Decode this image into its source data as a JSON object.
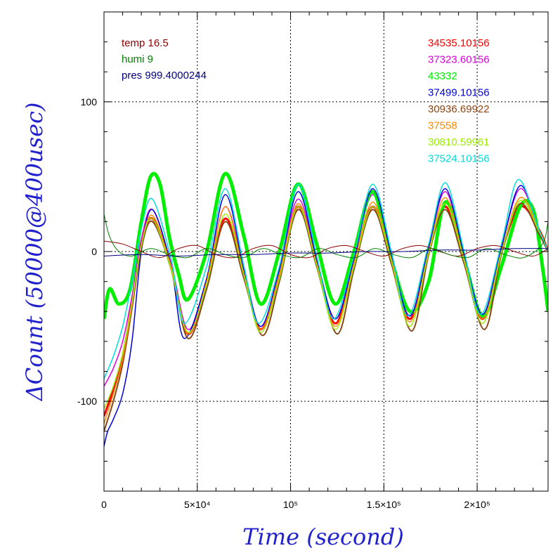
{
  "chart_data": {
    "type": "line",
    "title": "",
    "xlabel": "Time (second)",
    "ylabel": "ΔCount (50000@400usec)",
    "xlim": [
      0,
      238000
    ],
    "ylim": [
      -160,
      160
    ],
    "grid": true,
    "x_ticks": [
      {
        "value": 0,
        "label": "0"
      },
      {
        "value": 50000,
        "label": "5×10⁴"
      },
      {
        "value": 100000,
        "label": "10⁵"
      },
      {
        "value": 150000,
        "label": "1.5×10⁵"
      },
      {
        "value": 200000,
        "label": "2×10⁵"
      }
    ],
    "y_ticks": [
      {
        "value": -100,
        "label": "-100"
      },
      {
        "value": 0,
        "label": "0"
      },
      {
        "value": 100,
        "label": "100"
      }
    ],
    "env_legend": [
      {
        "label": "temp 16.5",
        "color": "#8b0000"
      },
      {
        "label": "humi 9",
        "color": "#008000"
      },
      {
        "label": "pres 999.4000244",
        "color": "#000080"
      }
    ],
    "series": [
      {
        "name": "34535.10156",
        "color": "#ff0000",
        "width": 3,
        "x": [
          0,
          5000,
          10000,
          15000,
          20000,
          26000,
          36000,
          45000,
          55000,
          65000,
          75000,
          84000,
          94000,
          104000,
          114000,
          124000,
          134000,
          144000,
          154000,
          164000,
          174000,
          183000,
          193000,
          203000,
          213000,
          223000,
          233000,
          238000
        ],
        "y": [
          -110,
          -92,
          -70,
          -35,
          5,
          22,
          -10,
          -55,
          -20,
          22,
          -15,
          -52,
          -15,
          30,
          -8,
          -48,
          -8,
          30,
          -5,
          -45,
          0,
          30,
          -5,
          -45,
          0,
          30,
          15,
          0
        ]
      },
      {
        "name": "37323.60156",
        "color": "#dd00dd",
        "width": 1.5,
        "x": [
          0,
          5000,
          10000,
          15000,
          20000,
          26000,
          36000,
          45000,
          55000,
          65000,
          75000,
          84000,
          94000,
          104000,
          114000,
          124000,
          134000,
          144000,
          154000,
          164000,
          174000,
          183000,
          193000,
          203000,
          213000,
          223000,
          233000,
          238000
        ],
        "y": [
          -90,
          -78,
          -60,
          -30,
          8,
          28,
          -8,
          -52,
          -18,
          30,
          -12,
          -50,
          -12,
          35,
          -5,
          -45,
          -5,
          38,
          -2,
          -43,
          3,
          40,
          -2,
          -42,
          3,
          42,
          15,
          0
        ]
      },
      {
        "name": "43332",
        "color": "#00ee00",
        "width": 5,
        "x": [
          0,
          3000,
          8000,
          14000,
          20000,
          25000,
          30000,
          35000,
          40000,
          45000,
          55000,
          65000,
          75000,
          84000,
          94000,
          104000,
          114000,
          124000,
          134000,
          144000,
          154000,
          164000,
          174000,
          183000,
          193000,
          203000,
          213000,
          223000,
          230000,
          235000,
          238000
        ],
        "y": [
          -45,
          -25,
          -35,
          -25,
          20,
          50,
          45,
          10,
          -15,
          -32,
          0,
          52,
          10,
          -35,
          0,
          45,
          5,
          -35,
          0,
          40,
          -5,
          -40,
          -20,
          33,
          -5,
          -43,
          -10,
          30,
          28,
          -10,
          -40
        ]
      },
      {
        "name": "37499.10156",
        "color": "#0000dd",
        "width": 1.5,
        "x": [
          0,
          2000,
          5000,
          10000,
          15000,
          20000,
          26000,
          36000,
          43000,
          55000,
          65000,
          75000,
          84000,
          94000,
          104000,
          114000,
          124000,
          134000,
          144000,
          154000,
          164000,
          174000,
          183000,
          193000,
          203000,
          213000,
          223000,
          233000,
          238000
        ],
        "y": [
          -130,
          -120,
          -112,
          -95,
          -60,
          0,
          28,
          -10,
          -58,
          -18,
          38,
          -12,
          -50,
          -12,
          40,
          -5,
          -45,
          -5,
          42,
          -2,
          -43,
          3,
          42,
          -2,
          -42,
          3,
          44,
          15,
          0
        ]
      },
      {
        "name": "30936.69922",
        "color": "#8b4513",
        "width": 2,
        "x": [
          0,
          5000,
          10000,
          15000,
          20000,
          26000,
          36000,
          45000,
          55000,
          65000,
          75000,
          85000,
          94000,
          104000,
          114000,
          125000,
          134000,
          144000,
          154000,
          165000,
          174000,
          183000,
          193000,
          204000,
          213000,
          223000,
          233000,
          238000
        ],
        "y": [
          -120,
          -100,
          -75,
          -38,
          2,
          20,
          -12,
          -58,
          -25,
          20,
          -18,
          -56,
          -20,
          28,
          -10,
          -55,
          -12,
          28,
          -8,
          -53,
          -2,
          28,
          -8,
          -52,
          -2,
          32,
          12,
          0
        ]
      },
      {
        "name": "37558",
        "color": "#ff8800",
        "width": 1.5,
        "x": [
          0,
          5000,
          10000,
          15000,
          20000,
          26000,
          36000,
          45000,
          55000,
          65000,
          75000,
          84000,
          94000,
          104000,
          114000,
          124000,
          134000,
          144000,
          154000,
          164000,
          174000,
          183000,
          193000,
          203000,
          213000,
          223000,
          233000,
          238000
        ],
        "y": [
          -115,
          -95,
          -72,
          -36,
          4,
          24,
          -10,
          -55,
          -20,
          30,
          -15,
          -52,
          -15,
          32,
          -8,
          -50,
          -8,
          33,
          -5,
          -47,
          0,
          36,
          -5,
          -45,
          0,
          36,
          15,
          0
        ]
      },
      {
        "name": "30810.59961",
        "color": "#99ee00",
        "width": 1.5,
        "x": [
          0,
          5000,
          10000,
          15000,
          20000,
          26000,
          36000,
          45000,
          55000,
          65000,
          75000,
          84000,
          94000,
          104000,
          114000,
          124000,
          134000,
          144000,
          154000,
          164000,
          174000,
          183000,
          193000,
          203000,
          213000,
          223000,
          233000,
          238000
        ],
        "y": [
          -105,
          -90,
          -68,
          -34,
          4,
          22,
          -12,
          -54,
          -22,
          25,
          -16,
          -54,
          -18,
          30,
          -9,
          -52,
          -10,
          30,
          -6,
          -50,
          -1,
          32,
          -6,
          -48,
          -1,
          34,
          14,
          0
        ]
      },
      {
        "name": "37524.10156",
        "color": "#00dddd",
        "width": 1.5,
        "x": [
          0,
          5000,
          10000,
          15000,
          20000,
          26000,
          36000,
          43000,
          55000,
          65000,
          75000,
          83000,
          94000,
          104000,
          114000,
          123000,
          134000,
          144000,
          154000,
          163000,
          174000,
          183000,
          193000,
          202000,
          213000,
          222000,
          233000,
          238000
        ],
        "y": [
          -85,
          -70,
          -50,
          -20,
          15,
          35,
          -5,
          -48,
          -10,
          42,
          -10,
          -48,
          -10,
          45,
          -3,
          -45,
          -3,
          45,
          0,
          -43,
          5,
          46,
          0,
          -42,
          5,
          48,
          15,
          0
        ]
      },
      {
        "name": "temp",
        "color": "#8b0000",
        "width": 1,
        "x": [
          0,
          10000,
          20000,
          30000,
          40000,
          50000,
          60000,
          70000,
          80000,
          90000,
          100000,
          110000,
          120000,
          130000,
          140000,
          150000,
          160000,
          170000,
          180000,
          190000,
          200000,
          210000,
          220000,
          230000,
          238000
        ],
        "y": [
          7,
          5,
          0,
          -4,
          2,
          4,
          -2,
          -4,
          2,
          4,
          -2,
          -4,
          2,
          4,
          0,
          -3,
          2,
          4,
          0,
          -3,
          2,
          4,
          0,
          -3,
          2
        ]
      },
      {
        "name": "humi",
        "color": "#008000",
        "width": 1,
        "x": [
          0,
          3000,
          8000,
          15000,
          25000,
          35000,
          45000,
          55000,
          65000,
          75000,
          85000,
          95000,
          105000,
          115000,
          125000,
          135000,
          145000,
          155000,
          165000,
          175000,
          185000,
          195000,
          205000,
          215000,
          225000,
          235000,
          238000
        ],
        "y": [
          25,
          10,
          0,
          -3,
          2,
          -2,
          -4,
          2,
          -2,
          -4,
          2,
          -2,
          -4,
          2,
          -2,
          -4,
          2,
          -2,
          -4,
          2,
          -2,
          -4,
          2,
          -2,
          -4,
          5,
          20
        ]
      },
      {
        "name": "pres",
        "color": "#000080",
        "width": 1,
        "x": [
          0,
          20000,
          40000,
          60000,
          80000,
          100000,
          120000,
          140000,
          160000,
          180000,
          200000,
          220000,
          238000
        ],
        "y": [
          -3,
          -2,
          -3,
          -2,
          -2,
          -1,
          -1,
          0,
          0,
          1,
          1,
          2,
          2
        ]
      }
    ]
  }
}
